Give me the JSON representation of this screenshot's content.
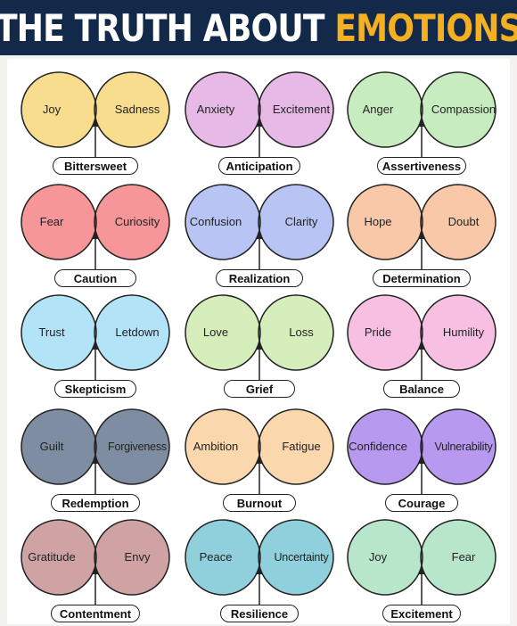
{
  "header": {
    "title_part1": "THE TRUTH ABOUT",
    "title_part2": "EMOTIONS",
    "accent_color": "#f4b021",
    "background_color": "#13294a"
  },
  "diagrams": [
    {
      "left": "Joy",
      "right": "Sadness",
      "result": "Bittersweet",
      "left_color": "#f8dd8e",
      "right_color": "#f8dd8e",
      "overlap_color": "#f2c641"
    },
    {
      "left": "Anxiety",
      "right": "Excitement",
      "result": "Anticipation",
      "left_color": "#e6b9e6",
      "right_color": "#e6b9e6",
      "overlap_color": "#d488d4"
    },
    {
      "left": "Anger",
      "right": "Compassion",
      "result": "Assertiveness",
      "left_color": "#c6ecbf",
      "right_color": "#c6ecbf",
      "overlap_color": "#9fdc92"
    },
    {
      "left": "Fear",
      "right": "Curiosity",
      "result": "Caution",
      "left_color": "#f69698",
      "right_color": "#f69698",
      "overlap_color": "#ef5f62"
    },
    {
      "left": "Confusion",
      "right": "Clarity",
      "result": "Realization",
      "left_color": "#b7c4f4",
      "right_color": "#b7c4f4",
      "overlap_color": "#8a9ceb"
    },
    {
      "left": "Hope",
      "right": "Doubt",
      "result": "Determination",
      "left_color": "#f8c8a8",
      "right_color": "#f8c8a8",
      "overlap_color": "#f29e6e"
    },
    {
      "left": "Trust",
      "right": "Letdown",
      "result": "Skepticism",
      "left_color": "#b3e3f6",
      "right_color": "#b3e3f6",
      "overlap_color": "#74cbf1"
    },
    {
      "left": "Love",
      "right": "Loss",
      "result": "Grief",
      "left_color": "#d6eebc",
      "right_color": "#d6eebc",
      "overlap_color": "#bce198"
    },
    {
      "left": "Pride",
      "right": "Humility",
      "result": "Balance",
      "left_color": "#f7c0e2",
      "right_color": "#f7c0e2",
      "overlap_color": "#ec85c4"
    },
    {
      "left": "Guilt",
      "right": "Forgiveness",
      "result": "Redemption",
      "left_color": "#7f8da2",
      "right_color": "#7f8da2",
      "overlap_color": "#5c6d87"
    },
    {
      "left": "Ambition",
      "right": "Fatigue",
      "result": "Burnout",
      "left_color": "#fad7ac",
      "right_color": "#fad7ac",
      "overlap_color": "#f6bf76"
    },
    {
      "left": "Confidence",
      "right": "Vulnerability",
      "result": "Courage",
      "left_color": "#b79af0",
      "right_color": "#b79af0",
      "overlap_color": "#8d62e6"
    },
    {
      "left": "Gratitude",
      "right": "Envy",
      "result": "Contentment",
      "left_color": "#cfa3a3",
      "right_color": "#cfa3a3",
      "overlap_color": "#b57474"
    },
    {
      "left": "Peace",
      "right": "Uncertainty",
      "result": "Resilience",
      "left_color": "#8fd0dc",
      "right_color": "#8fd0dc",
      "overlap_color": "#45b2c4"
    },
    {
      "left": "Joy",
      "right": "Fear",
      "result": "Excitement",
      "left_color": "#b7e6cb",
      "right_color": "#b7e6cb",
      "overlap_color": "#7dd3a3"
    }
  ]
}
